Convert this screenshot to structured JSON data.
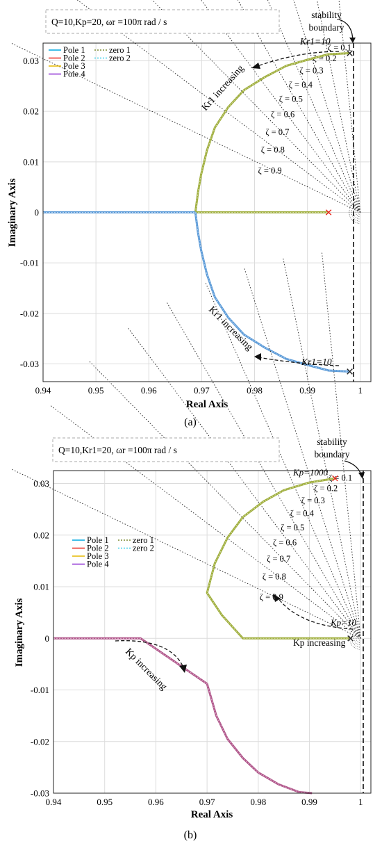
{
  "chart_data": [
    {
      "type": "line",
      "caption": "(a)",
      "param_box": "Q=10,Kp=20,  ωr =100π rad / s",
      "xlabel": "Real Axis",
      "ylabel": "Imaginary Axis",
      "xlim": [
        0.94,
        1.002
      ],
      "ylim": [
        -0.0335,
        0.0335
      ],
      "xticks": [
        "0.94",
        "0.95",
        "0.96",
        "0.97",
        "0.98",
        "0.99",
        "1"
      ],
      "yticks": [
        "-0.03",
        "-0.02",
        "-0.01",
        "0",
        "0.01",
        "0.02",
        "0.03"
      ],
      "grid": true,
      "legend": {
        "placement": "top-left",
        "entries": [
          "Pole 1",
          "Pole 2",
          "Pole 3",
          "Pole 4",
          "zero 1",
          "zero 2"
        ]
      },
      "colors": {
        "Pole 1": "#00a8e0",
        "Pole 2": "#e8261c",
        "Pole 3": "#e6b800",
        "Pole 4": "#8c2bd1",
        "zero 1": "#7a8a30",
        "zero 2": "#3fd0e8",
        "locus_upper": "#9fae3c",
        "locus_lower": "#5a9ad8"
      },
      "series": [
        {
          "name": "locus-upper",
          "x": [
            0.998,
            0.994,
            0.99,
            0.986,
            0.982,
            0.978,
            0.975,
            0.9725,
            0.971,
            0.9699,
            0.9693,
            0.9688
          ],
          "y": [
            0.0315,
            0.0313,
            0.0302,
            0.029,
            0.0268,
            0.0242,
            0.0208,
            0.0168,
            0.0123,
            0.0075,
            0.004,
            0
          ]
        },
        {
          "name": "locus-real-right",
          "x": [
            0.9688,
            0.994
          ],
          "y": [
            0,
            0
          ]
        },
        {
          "name": "locus-lower",
          "x": [
            0.9688,
            0.9693,
            0.9699,
            0.971,
            0.9725,
            0.975,
            0.978,
            0.982,
            0.986,
            0.99,
            0.994,
            0.998
          ],
          "y": [
            0,
            -0.004,
            -0.0075,
            -0.0123,
            -0.0168,
            -0.0208,
            -0.0242,
            -0.0268,
            -0.029,
            -0.0302,
            -0.0313,
            -0.0315
          ]
        },
        {
          "name": "locus-real-left",
          "x": [
            0.94,
            0.9688
          ],
          "y": [
            0,
            0
          ]
        }
      ],
      "markers": [
        {
          "type": "x",
          "color": "#e8261c",
          "x": 0.994,
          "y": 0
        },
        {
          "type": "x",
          "color": "#222222",
          "x": 0.998,
          "y": 0.0315
        },
        {
          "type": "x",
          "color": "#222222",
          "x": 0.998,
          "y": -0.0315
        }
      ],
      "zeta": [
        "0.1",
        "0.2",
        "0.3",
        "0.4",
        "0.5",
        "0.6",
        "0.7",
        "0.8",
        "0.9"
      ],
      "annotations": {
        "stability": [
          "stability",
          "boundary"
        ],
        "k_top": "Kr1=10",
        "k_bottom": "Kr1=10",
        "inc_upper": "Kr1 increasing",
        "inc_lower": "Kr1 increasing"
      },
      "zeta_prefix": "ζ ="
    },
    {
      "type": "line",
      "caption": "(b)",
      "param_box": "Q=10,Kr1=20,  ωr =100π rad / s",
      "xlabel": "Real Axis",
      "ylabel": "Imaginary Axis",
      "xlim": [
        0.94,
        1.002
      ],
      "ylim": [
        -0.03,
        0.0325
      ],
      "xticks": [
        "0.94",
        "0.95",
        "0.96",
        "0.97",
        "0.98",
        "0.99",
        "1"
      ],
      "yticks": [
        "-0.03",
        "-0.02",
        "-0.01",
        "0",
        "0.01",
        "0.02",
        "0.03"
      ],
      "grid": true,
      "legend": {
        "placement": "upper-left",
        "entries": [
          "Pole 1",
          "Pole 2",
          "Pole 3",
          "Pole 4",
          "zero 1",
          "zero 2"
        ]
      },
      "colors": {
        "Pole 1": "#00a8e0",
        "Pole 2": "#e8261c",
        "Pole 3": "#e6b800",
        "Pole 4": "#8c2bd1",
        "zero 1": "#7a8a30",
        "zero 2": "#3fd0e8",
        "locus_upper": "#9fae3c",
        "locus_lower": "#b0558a"
      },
      "series": [
        {
          "name": "locus-upper",
          "x": [
            0.998,
            0.977,
            0.9729,
            0.97,
            0.9715,
            0.974,
            0.977,
            0.981,
            0.985,
            0.99,
            0.995
          ],
          "y": [
            0,
            0,
            0.0045,
            0.0088,
            0.0145,
            0.0195,
            0.0235,
            0.0265,
            0.0287,
            0.0302,
            0.031
          ]
        },
        {
          "name": "locus-lower",
          "x": [
            0.94,
            0.957,
            0.97,
            0.9718,
            0.974,
            0.977,
            0.98,
            0.984,
            0.988,
            0.9905
          ],
          "y": [
            0,
            0,
            -0.0088,
            -0.015,
            -0.0195,
            -0.0232,
            -0.026,
            -0.0283,
            -0.0298,
            -0.03
          ]
        }
      ],
      "markers": [
        {
          "type": "x",
          "color": "#e8261c",
          "x": 0.995,
          "y": 0.031
        },
        {
          "type": "x",
          "color": "#222222",
          "x": 0.998,
          "y": 0
        }
      ],
      "zeta": [
        "0.1",
        "0.2",
        "0.3",
        "0.4",
        "0.5",
        "0.6",
        "0.7",
        "0.8",
        "0.9"
      ],
      "annotations": {
        "stability": [
          "stability",
          "boundary"
        ],
        "k_top": "Kp=1000",
        "k_bottom": "Kp=10",
        "inc_right": "Kp increasing",
        "inc_left": "Kp increasing"
      },
      "zeta_prefix": "ζ ="
    }
  ]
}
